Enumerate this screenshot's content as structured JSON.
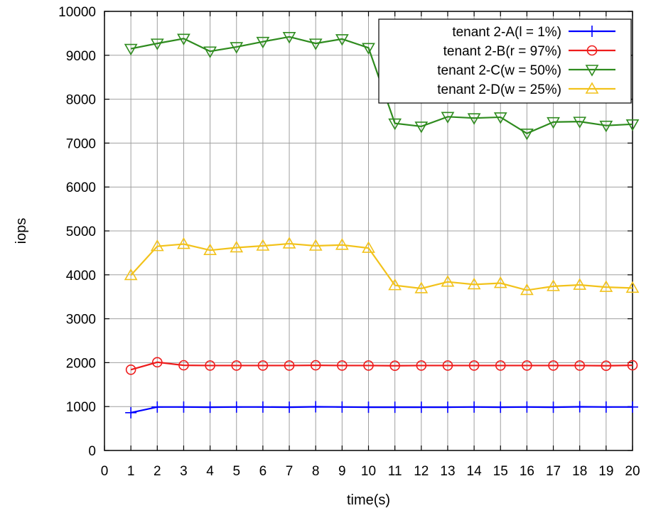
{
  "chart_data": {
    "type": "line",
    "xlabel": "time(s)",
    "ylabel": "iops",
    "xlim": [
      0,
      20
    ],
    "ylim": [
      0,
      10000
    ],
    "xticks": [
      0,
      1,
      2,
      3,
      4,
      5,
      6,
      7,
      8,
      9,
      10,
      11,
      12,
      13,
      14,
      15,
      16,
      17,
      18,
      19,
      20
    ],
    "yticks": [
      0,
      1000,
      2000,
      3000,
      4000,
      5000,
      6000,
      7000,
      8000,
      9000,
      10000
    ],
    "grid": true,
    "legend_position": "top-right",
    "x": [
      1,
      2,
      3,
      4,
      5,
      6,
      7,
      8,
      9,
      10,
      11,
      12,
      13,
      14,
      15,
      16,
      17,
      18,
      19,
      20
    ],
    "series": [
      {
        "name": "tenant 2-A(l =    1%)",
        "color": "#0000ff",
        "marker": "plus",
        "values": [
          860,
          990,
          990,
          985,
          990,
          990,
          985,
          995,
          990,
          985,
          985,
          985,
          985,
          990,
          985,
          990,
          985,
          995,
          990,
          990
        ]
      },
      {
        "name": "tenant 2-B(r = 97%)",
        "color": "#ee1c1c",
        "marker": "circle",
        "values": [
          1840,
          2010,
          1940,
          1935,
          1935,
          1935,
          1935,
          1940,
          1935,
          1935,
          1930,
          1935,
          1935,
          1935,
          1935,
          1935,
          1935,
          1935,
          1930,
          1940
        ]
      },
      {
        "name": "tenant 2-C(w = 50%)",
        "color": "#2e8b1e",
        "marker": "triangle-down",
        "values": [
          9150,
          9270,
          9380,
          9090,
          9190,
          9310,
          9420,
          9270,
          9370,
          9170,
          7450,
          7380,
          7600,
          7570,
          7590,
          7220,
          7480,
          7490,
          7400,
          7430
        ]
      },
      {
        "name": "tenant 2-D(w = 25%)",
        "color": "#f2c21b",
        "marker": "triangle-up",
        "values": [
          3990,
          4650,
          4700,
          4560,
          4620,
          4660,
          4710,
          4660,
          4680,
          4610,
          3760,
          3690,
          3840,
          3780,
          3810,
          3650,
          3740,
          3770,
          3720,
          3700
        ]
      }
    ]
  }
}
